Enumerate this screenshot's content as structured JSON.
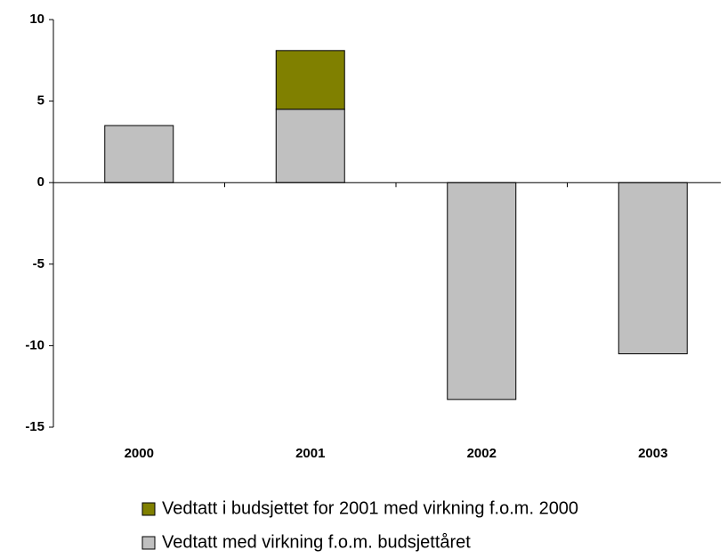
{
  "chart_data": {
    "type": "bar",
    "stacked": true,
    "categories": [
      "2000",
      "2001",
      "2002",
      "2003"
    ],
    "series": [
      {
        "name": "Vedtatt med virkning f.o.m. budsjettåret",
        "color": "#c0c0c0",
        "values": [
          3.5,
          4.5,
          -13.3,
          -10.5
        ]
      },
      {
        "name": "Vedtatt i budsjettet for 2001 med virkning f.o.m. 2000",
        "color": "#808000",
        "values": [
          null,
          3.6,
          null,
          null
        ]
      }
    ],
    "ylim": [
      -15,
      10
    ],
    "yticks": [
      -15,
      -10,
      -5,
      0,
      5,
      10
    ],
    "grid": false
  }
}
